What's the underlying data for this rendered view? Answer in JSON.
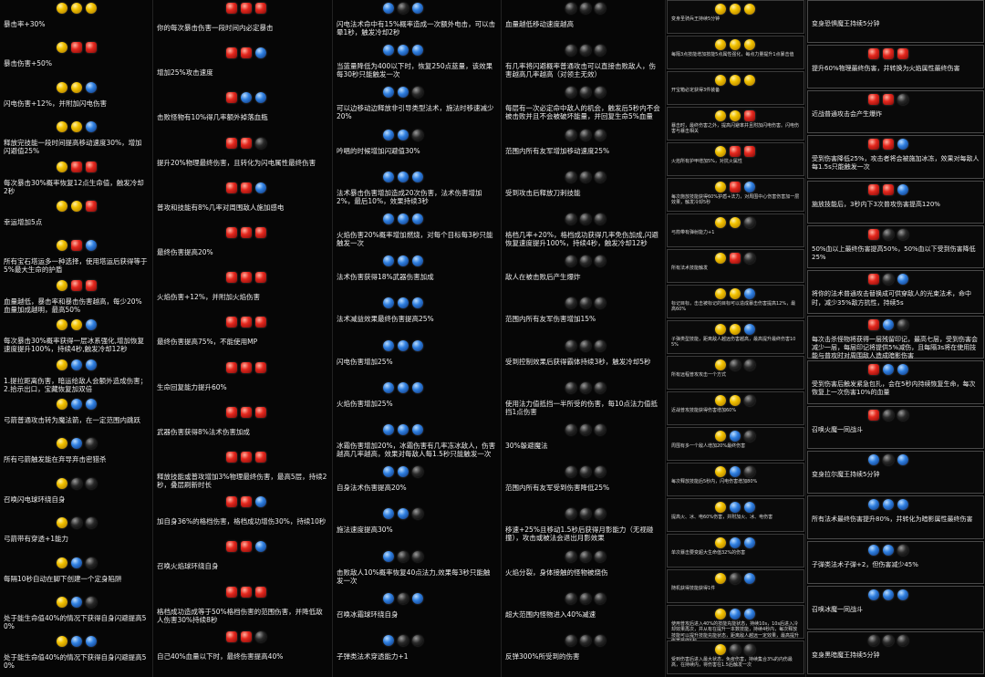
{
  "colors": {
    "gold": "#f2c200",
    "red": "#e5281e",
    "blue": "#2f7fe0",
    "black": "#1a1a1a",
    "text": "#eeeeee",
    "background": "#060606"
  },
  "columns": [
    {
      "entries": [
        {
          "gems": [
            "gold",
            "gold",
            "gold"
          ],
          "text": "暴击率+30%"
        },
        {
          "gems": [
            "gold",
            "red",
            "red"
          ],
          "text": "暴击伤害+50%"
        },
        {
          "gems": [
            "gold",
            "gold",
            "blue"
          ],
          "text": "闪电伤害+12%，并附加闪电伤害"
        },
        {
          "gems": [
            "gold",
            "gold",
            "blue"
          ],
          "text": "释放完技能一段时间提高移动速度30%，增加闪避值25%"
        },
        {
          "gems": [
            "gold",
            "red",
            "red"
          ],
          "text": "每次暴击30%概率恢复12点生命值，触发冷却2秒"
        },
        {
          "gems": [
            "gold",
            "gold",
            "red"
          ],
          "text": "幸运增加5点"
        },
        {
          "gems": [
            "gold",
            "red",
            "blue"
          ],
          "text": "所有宝石塔运多一种选择，使用塔运后获得等于5%最大生命的护盾"
        },
        {
          "gems": [
            "gold",
            "red",
            "red"
          ],
          "text": "血量越低，暴击率和暴击伤害越高，每少20%血量加成越明，最高50%"
        },
        {
          "gems": [
            "gold",
            "gold",
            "blue"
          ],
          "text": "每次暴击30%概率获得一层冰系强化,增加恢复速度提升100%，持续4秒,触发冷却12秒"
        },
        {
          "gems": [
            "gold",
            "blue",
            "blue"
          ],
          "text": "1.提拉距离伤害，暗运给敌人会额外造成伤害；\n2.拾示出口，宝藏恢复加双倍"
        },
        {
          "gems": [
            "gold",
            "blue",
            "blue"
          ],
          "text": "弓箭普通攻击转为魔法箭，在一定范围内跳跃"
        },
        {
          "gems": [
            "gold",
            "blue",
            "black"
          ],
          "text": "所有弓箭触发能在弃导弃击密猎杀"
        },
        {
          "gems": [
            "gold",
            "black",
            "black"
          ],
          "text": "召唤闪电球环绕自身"
        },
        {
          "gems": [
            "gold",
            "black",
            "black"
          ],
          "text": "弓箭带有穿透+1能力"
        },
        {
          "gems": [
            "gold",
            "blue",
            "black"
          ],
          "text": "每隔10秒自动在脚下创建一个定身陷阱"
        },
        {
          "gems": [
            "gold",
            "blue",
            "black"
          ],
          "text": "处于能生命值40%的情况下获得自身闪避提高50%"
        },
        {
          "gems": [
            "gold",
            "blue",
            "blue"
          ],
          "text": "处于能生命值40%的情况下获得自身闪避提高50%"
        }
      ]
    },
    {
      "entries": [
        {
          "gems": [
            "red",
            "red",
            "red"
          ],
          "text": "你的每次暴击伤害一段时间内必定暴击"
        },
        {
          "gems": [
            "red",
            "red",
            "blue"
          ],
          "text": "增加25%攻击速度"
        },
        {
          "gems": [
            "red",
            "blue",
            "blue"
          ],
          "text": "击败怪物有10%得几率额外掉落血瓶"
        },
        {
          "gems": [
            "red",
            "red",
            "black"
          ],
          "text": "提升20%物理最终伤害，且转化为闪电属性最终伤害"
        },
        {
          "gems": [
            "red",
            "red",
            "blue"
          ],
          "text": "普攻和技能有8%几率对周围敌人施加感电"
        },
        {
          "gems": [
            "red",
            "red",
            "red"
          ],
          "text": "最终伤害提高20%"
        },
        {
          "gems": [
            "red",
            "red",
            "red"
          ],
          "text": "火焰伤害+12%，并附加火焰伤害"
        },
        {
          "gems": [
            "red",
            "red",
            "red"
          ],
          "text": "最终伤害提高75%，不能使用MP"
        },
        {
          "gems": [
            "red",
            "red",
            "red"
          ],
          "text": "生命回复能力提升60%"
        },
        {
          "gems": [
            "red",
            "red",
            "red"
          ],
          "text": "武器伤害获得8%法术伤害加成"
        },
        {
          "gems": [
            "red",
            "red",
            "red"
          ],
          "text": "释放技能或普攻增加3%物理最终伤害，最高5层，持续2秒，叠层刷新时长"
        },
        {
          "gems": [
            "red",
            "red",
            "blue"
          ],
          "text": "加自身36%的格档伤害，格档成功增伤30%，持续10秒"
        },
        {
          "gems": [
            "red",
            "red",
            "blue"
          ],
          "text": "召唤火焰球环绕自身"
        },
        {
          "gems": [
            "red",
            "red",
            "red"
          ],
          "text": "格档成功造成等于50%格档伤害的范围伤害，并降低敌人伤害30%持续8秒"
        },
        {
          "gems": [
            "red",
            "red",
            "black"
          ],
          "text": "自己40%血量以下时，最终伤害提高40%"
        }
      ]
    },
    {
      "entries": [
        {
          "gems": [
            "blue",
            "black",
            "blue"
          ],
          "text": "闪电法术命中有15%概率造成一次额外电击，可以击晕1秒，触发冷却2秒"
        },
        {
          "gems": [
            "blue",
            "blue",
            "blue"
          ],
          "text": "当蓝量降低为400以下时，恢复250点蓝量，该效果每30秒只能触发一次"
        },
        {
          "gems": [
            "blue",
            "blue",
            "black"
          ],
          "text": "可以边移动边释放非引导类型法术，施法时移速减少20%"
        },
        {
          "gems": [
            "blue",
            "blue",
            "black"
          ],
          "text": "吟唱的时候增加闪避值30%"
        },
        {
          "gems": [
            "blue",
            "blue",
            "blue"
          ],
          "text": "法术暴击伤害增加造成20次伤害，法术伤害增加2%，最后10%，效果持续3秒"
        },
        {
          "gems": [
            "blue",
            "blue",
            "blue"
          ],
          "text": "火焰伤害20%概率增加燃烧，对每个目标每3秒只能触发一次"
        },
        {
          "gems": [
            "blue",
            "blue",
            "blue"
          ],
          "text": "法术伤害获得18%武器伤害加成"
        },
        {
          "gems": [
            "blue",
            "blue",
            "blue"
          ],
          "text": "法术减益效果最终伤害提高25%"
        },
        {
          "gems": [
            "blue",
            "blue",
            "blue"
          ],
          "text": "闪电伤害增加25%"
        },
        {
          "gems": [
            "blue",
            "blue",
            "blue"
          ],
          "text": "火焰伤害增加25%"
        },
        {
          "gems": [
            "blue",
            "blue",
            "blue"
          ],
          "text": "冰霜伤害增加20%，冰霜伤害有几率冻冰敌人，伤害越高几率越高，效果对每敌人每1.5秒只能触发一次"
        },
        {
          "gems": [
            "blue",
            "blue",
            "black"
          ],
          "text": "自身法术伤害提高20%"
        },
        {
          "gems": [
            "blue",
            "blue",
            "black"
          ],
          "text": "施法速度提高30%"
        },
        {
          "gems": [
            "blue",
            "black",
            "black"
          ],
          "text": "击败敌人10%概率恢复40点法力,效果每3秒只能触发一次"
        },
        {
          "gems": [
            "blue",
            "black",
            "blue"
          ],
          "text": "召唤冰霜球环绕自身"
        },
        {
          "gems": [
            "blue",
            "black",
            "black"
          ],
          "text": "子弹类法术穿透能力+1"
        }
      ]
    },
    {
      "entries": [
        {
          "gems": [
            "black",
            "black",
            "black"
          ],
          "text": "血量越低移动速度越高"
        },
        {
          "gems": [
            "black",
            "black",
            "black"
          ],
          "text": "有几率将闪避概率普通攻击可以直接击败敌人，伤害越高几率越高（对领主无效）"
        },
        {
          "gems": [
            "black",
            "black",
            "black"
          ],
          "text": "每层有一次必定命中敌人的机会，触发后5秒内不会被击败并且不会被破坏能量，并回复生命5%血量"
        },
        {
          "gems": [
            "black",
            "black",
            "black"
          ],
          "text": "范围内所有友军增加移动速度25%"
        },
        {
          "gems": [
            "black",
            "black",
            "black"
          ],
          "text": "受到攻击后释放刀刺技能"
        },
        {
          "gems": [
            "black",
            "black",
            "black"
          ],
          "text": "格档几率+20%，格档成功获得几率免伤加成,闪避恢复速度提升100%，持续4秒，触发冷却12秒"
        },
        {
          "gems": [
            "black",
            "black",
            "black"
          ],
          "text": "敌人在被击败后产生爆炸"
        },
        {
          "gems": [
            "black",
            "black",
            "black"
          ],
          "text": "范围内所有友军伤害增加15%"
        },
        {
          "gems": [
            "black",
            "black",
            "black"
          ],
          "text": "受到控制效果后获得霸体持续3秒，触发冷却5秒"
        },
        {
          "gems": [
            "black",
            "black",
            "black"
          ],
          "text": "使用法力值抵挡一半所受的伤害，每10点法力值抵挡1点伤害"
        },
        {
          "gems": [
            "black",
            "black",
            "black"
          ],
          "text": "30%躲避魔法"
        },
        {
          "gems": [
            "black",
            "black",
            "black"
          ],
          "text": "范围内所有友军受到伤害降低25%"
        },
        {
          "gems": [
            "black",
            "black",
            "black"
          ],
          "text": "移速+25%且移动1.5秒后获得月影能力（无视碰撞），攻击或被法会退出月影效果"
        },
        {
          "gems": [
            "black",
            "black",
            "black"
          ],
          "text": "火焰分裂，身体接触的怪物被烧伤"
        },
        {
          "gems": [
            "black",
            "black",
            "black"
          ],
          "text": "超大范围内怪物进入40%减速"
        },
        {
          "gems": [
            "black",
            "black",
            "black"
          ],
          "text": "反弹300%所受到的伤害"
        }
      ]
    },
    {
      "entries": [
        {
          "gems": [
            "gold",
            "gold",
            "gold"
          ],
          "text": "变身圣骑兵王持续5分钟"
        },
        {
          "gems": [
            "gold",
            "gold",
            "gold"
          ],
          "text": "每隔3点技能增加技能5点属性强化，每点力量提升1点暴击值"
        },
        {
          "gems": [
            "gold",
            "gold",
            "gold"
          ],
          "text": "开宝箱必定获得3件装备"
        },
        {
          "gems": [
            "gold",
            "gold",
            "red"
          ],
          "text": "暴击时，最终伤害之外，提高闪避率并且附加闪电伤害。闪电伤害与暴击相关"
        },
        {
          "gems": [
            "gold",
            "red",
            "red"
          ],
          "text": "火焰所有护甲增加5%，对抗火属性"
        },
        {
          "gems": [
            "gold",
            "red",
            "blue"
          ],
          "text": "每次施放技能获得60%护盾+法力，对周围中心伤害伤害加一层效果，触发冷却5秒"
        },
        {
          "gems": [
            "gold",
            "gold",
            "black"
          ],
          "text": "弓箭带有弹射能力+1"
        },
        {
          "gems": [
            "gold",
            "red",
            "black"
          ],
          "text": "所有法术技能触发"
        },
        {
          "gems": [
            "gold",
            "gold",
            "blue"
          ],
          "text": "标记目标，击击被标记的目标可以造成暴击伤害提高12%，最高60%"
        },
        {
          "gems": [
            "gold",
            "gold",
            "blue"
          ],
          "text": "子弹类型技能，距离敌人越远伤害越高，最高提升最终伤害105%"
        },
        {
          "gems": [
            "gold",
            "black",
            "black"
          ],
          "text": "所有远程普攻攻击一个方式"
        },
        {
          "gems": [
            "gold",
            "gold",
            "black"
          ],
          "text": "近战普攻技能获得伤害增加60%"
        },
        {
          "gems": [
            "gold",
            "blue",
            "black"
          ],
          "text": "周围有多一个敌人增加20%最终伤害"
        },
        {
          "gems": [
            "gold",
            "blue",
            "black"
          ],
          "text": "每次释放技能后5秒内，闪电伤害增加80%"
        },
        {
          "gems": [
            "gold",
            "blue",
            "blue"
          ],
          "text": "提高火、冰、电60%伤害，并附加火、冰、电伤害"
        },
        {
          "gems": [
            "gold",
            "blue",
            "blue"
          ],
          "text": "单次暴击要变超大生命值32%的伤害"
        },
        {
          "gems": [
            "gold",
            "black",
            "blue"
          ],
          "text": "随机获得技能获得1件"
        },
        {
          "gems": [
            "gold",
            "blue",
            "blue"
          ],
          "text": "使用普攻后进入40%的技能充能状态，持续10s，10s后进入冷却效果再次，并从有在提升一本数技能，持续4秒内，每次释放技能可以提升技能充能状态，距离敌人越远一定效果，最高提升伤害最终5秒"
        },
        {
          "gems": [
            "gold",
            "black",
            "black"
          ],
          "text": "受到伤害后进入最大状态，免疫伤害，持续集合3%的内伤最高，在持续内，将伤害在1.5后触发一次"
        }
      ]
    },
    {
      "entries": [
        {
          "gems": [],
          "text": "变身恐惧魔王持续5分钟"
        },
        {
          "gems": [
            "red",
            "red",
            "red"
          ],
          "text": "提升60%物理最终伤害，并转换为火焰属性最终伤害"
        },
        {
          "gems": [
            "red",
            "red",
            "black"
          ],
          "text": "近战普通攻击会产生爆炸"
        },
        {
          "gems": [
            "red",
            "red",
            "blue"
          ],
          "text": "受到伤害降低25%，攻击者将会被施加冰冻，效果对每敌人每1.5s只能触发一次"
        },
        {
          "gems": [
            "red",
            "red",
            "blue"
          ],
          "text": "施放技能后，3秒内下3次普攻伤害提高120%"
        },
        {
          "gems": [
            "red",
            "black",
            "black"
          ],
          "text": "50%血以上最终伤害提高50%，50%血以下受到伤害降低25%"
        },
        {
          "gems": [
            "red",
            "black",
            "blue"
          ],
          "text": "将你的法术普通攻击替换成可供穿敌人的光束法术，命中时，减少35%敌方抗性，持续5s"
        },
        {
          "gems": [
            "red",
            "blue",
            "black"
          ],
          "text": "每次击杀怪物将获得一层残留印记，最高七层，受到伤害会减少一层，每层印记将提供5%减伤，且每隔3s将在使用技能与普攻时对周围敌人造成暗影伤害"
        },
        {
          "gems": [
            "red",
            "blue",
            "blue"
          ],
          "text": "受到伤害后触发紧急包扎，会在5秒内持续恢复生命，每次恢复上一次伤害10%的血量"
        },
        {
          "gems": [
            "red",
            "black",
            "black"
          ],
          "text": "召唤火魔一同战斗"
        },
        {
          "gems": [
            "blue",
            "black",
            "blue"
          ],
          "text": "变身拉尔魔王持续5分钟"
        },
        {
          "gems": [
            "blue",
            "blue",
            "blue"
          ],
          "text": "所有法术最终伤害提升80%，并转化为暗影属性最终伤害"
        },
        {
          "gems": [
            "blue",
            "blue",
            "black"
          ],
          "text": "子弹类法术子弹+2，但伤害减少45%"
        },
        {
          "gems": [
            "blue",
            "blue",
            "blue"
          ],
          "text": "召唤冰魔一同战斗"
        },
        {
          "gems": [
            "black",
            "black",
            "black"
          ],
          "text": "变身黑暗魔王持续5分钟"
        }
      ]
    }
  ]
}
